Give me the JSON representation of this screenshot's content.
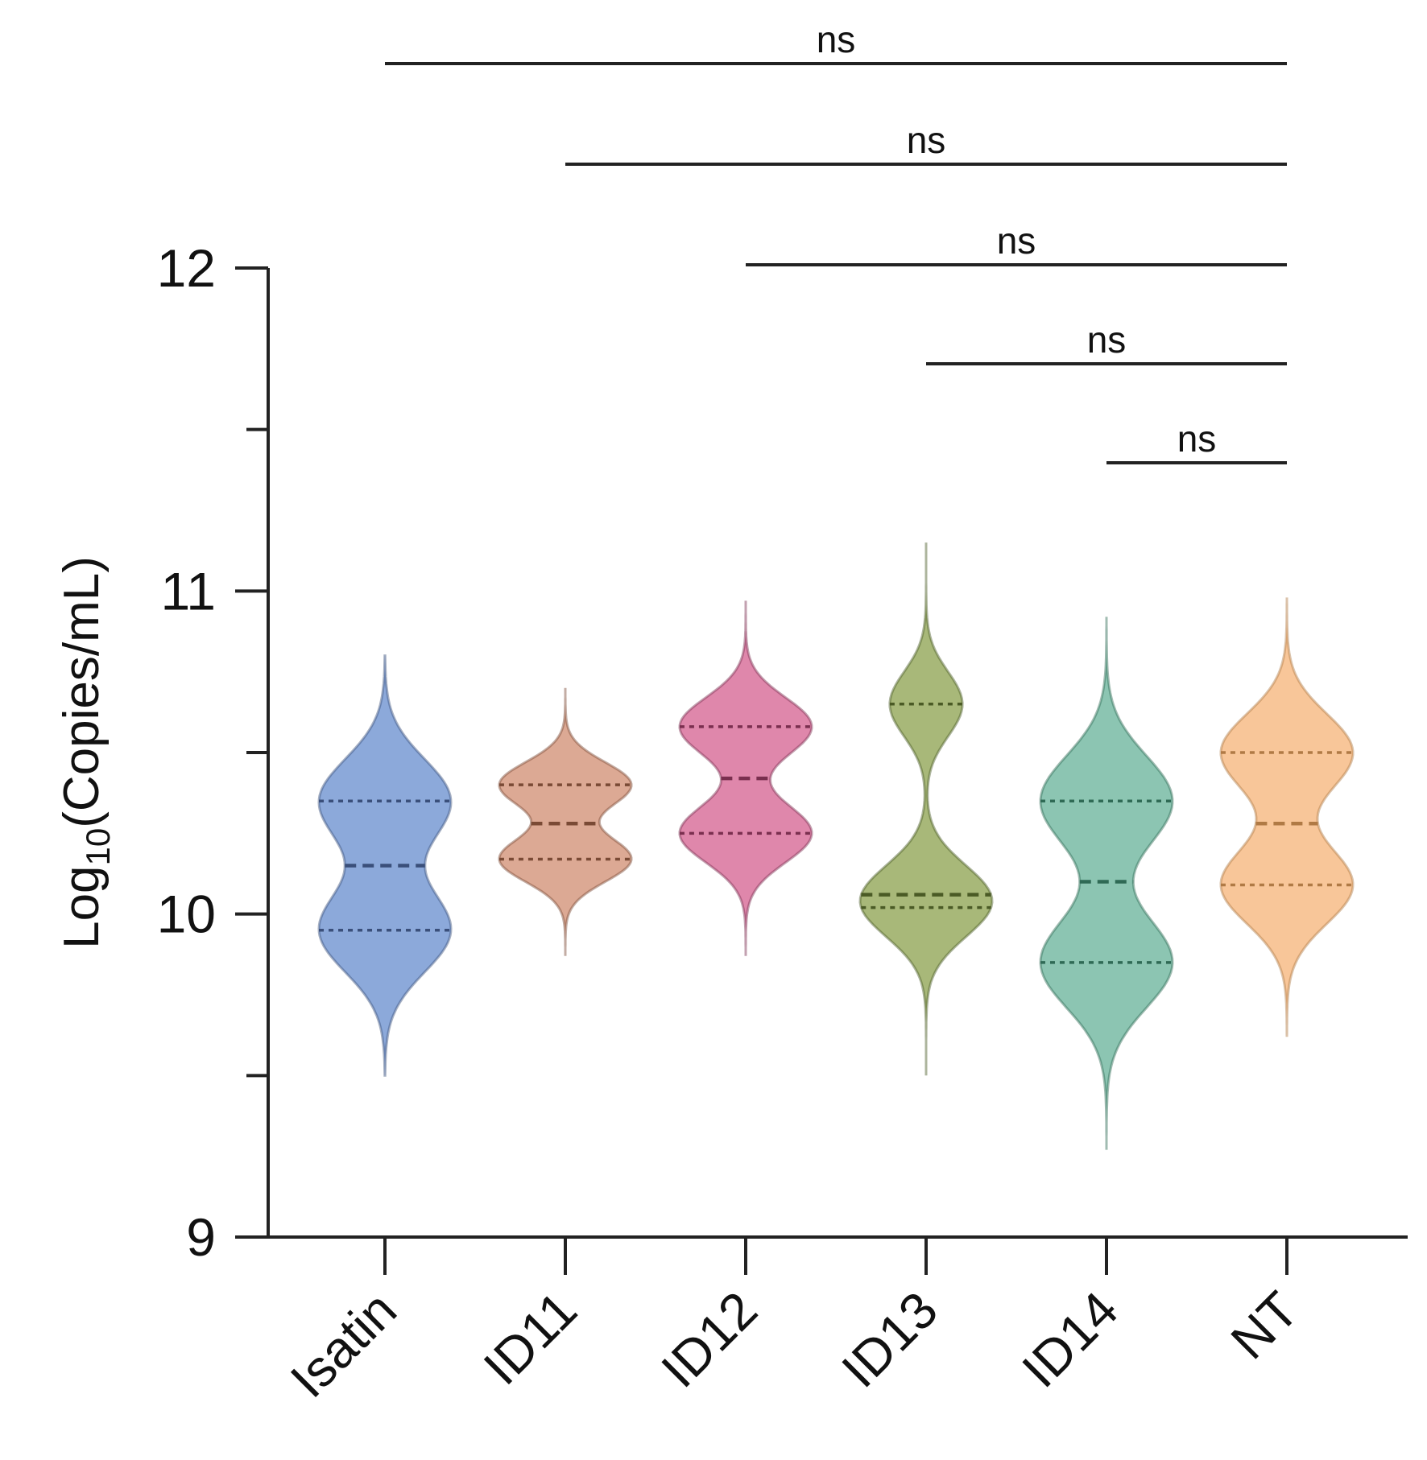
{
  "chart_data": {
    "type": "violin",
    "title": "",
    "xlabel": "",
    "ylabel": {
      "main": "Log",
      "sub": "10",
      "rest": "(Copies/mL)"
    },
    "ylim": [
      9,
      12
    ],
    "yticks_major": [
      9,
      10,
      11,
      12
    ],
    "yticks_minor": [
      9.5,
      10.5,
      11.5
    ],
    "categories": [
      "Isatin",
      "ID11",
      "ID12",
      "ID13",
      "ID14",
      "NT"
    ],
    "series": [
      {
        "category": "Isatin",
        "color": "#7fa0d6",
        "line_color": "#3a4f7a",
        "min": 9.5,
        "max": 10.8,
        "q1": 9.95,
        "median": 10.15,
        "q3": 10.35,
        "modes": [
          {
            "center": 9.95,
            "width": 0.13,
            "weight": 1.0
          },
          {
            "center": 10.35,
            "width": 0.13,
            "weight": 1.0
          }
        ]
      },
      {
        "category": "ID11",
        "color": "#d8a088",
        "line_color": "#7a4a35",
        "min": 9.87,
        "max": 10.7,
        "q1": 10.17,
        "median": 10.28,
        "q3": 10.4,
        "modes": [
          {
            "center": 10.17,
            "width": 0.07,
            "weight": 1.0
          },
          {
            "center": 10.4,
            "width": 0.07,
            "weight": 1.0
          }
        ]
      },
      {
        "category": "ID12",
        "color": "#dc7aa2",
        "line_color": "#7a2f4f",
        "min": 9.87,
        "max": 10.97,
        "q1": 10.25,
        "median": 10.42,
        "q3": 10.58,
        "modes": [
          {
            "center": 10.25,
            "width": 0.09,
            "weight": 1.0
          },
          {
            "center": 10.58,
            "width": 0.09,
            "weight": 1.0
          }
        ]
      },
      {
        "category": "ID13",
        "color": "#9eb06a",
        "line_color": "#4a5a25",
        "min": 9.5,
        "max": 11.15,
        "q1": 10.02,
        "median": 10.06,
        "q3": 10.65,
        "modes": [
          {
            "center": 10.04,
            "width": 0.11,
            "weight": 1.0
          },
          {
            "center": 10.65,
            "width": 0.1,
            "weight": 0.55
          }
        ]
      },
      {
        "category": "ID14",
        "color": "#7fbfaa",
        "line_color": "#2f6a55",
        "min": 9.27,
        "max": 10.92,
        "q1": 9.85,
        "median": 10.1,
        "q3": 10.35,
        "modes": [
          {
            "center": 9.85,
            "width": 0.14,
            "weight": 1.0
          },
          {
            "center": 10.35,
            "width": 0.14,
            "weight": 1.0
          }
        ]
      },
      {
        "category": "NT",
        "color": "#f7c08e",
        "line_color": "#b07a45",
        "min": 9.62,
        "max": 10.98,
        "q1": 10.09,
        "median": 10.28,
        "q3": 10.5,
        "modes": [
          {
            "center": 10.09,
            "width": 0.12,
            "weight": 1.0
          },
          {
            "center": 10.5,
            "width": 0.12,
            "weight": 1.0
          }
        ]
      }
    ],
    "significance": [
      {
        "from": "Isatin",
        "to": "NT",
        "label": "ns"
      },
      {
        "from": "ID11",
        "to": "NT",
        "label": "ns"
      },
      {
        "from": "ID12",
        "to": "NT",
        "label": "ns"
      },
      {
        "from": "ID13",
        "to": "NT",
        "label": "ns"
      },
      {
        "from": "ID14",
        "to": "NT",
        "label": "ns"
      }
    ]
  }
}
